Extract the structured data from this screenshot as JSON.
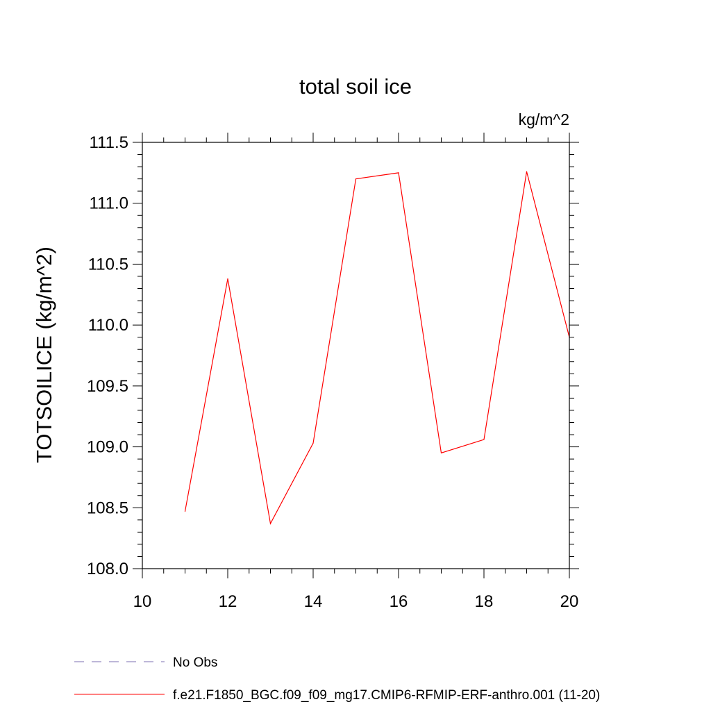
{
  "chart_data": {
    "type": "line",
    "title": "total soil ice",
    "units_label": "kg/m^2",
    "xlabel": "",
    "ylabel": "TOTSOILICE  (kg/m^2)",
    "xlim": [
      10,
      20
    ],
    "ylim": [
      108.0,
      111.5
    ],
    "x_ticks": [
      10,
      12,
      14,
      16,
      18,
      20
    ],
    "x_tick_labels": [
      "10",
      "12",
      "14",
      "16",
      "18",
      "20"
    ],
    "y_ticks": [
      108.0,
      108.5,
      109.0,
      109.5,
      110.0,
      110.5,
      111.0,
      111.5
    ],
    "y_tick_labels": [
      "108.0",
      "108.5",
      "109.0",
      "109.5",
      "110.0",
      "110.5",
      "111.0",
      "111.5"
    ],
    "grid": false,
    "legend_position": "bottom",
    "series": [
      {
        "name": "f.e21.F1850_BGC.f09_f09_mg17.CMIP6-RFMIP-ERF-anthro.001 (11-20)",
        "color": "#ff0000",
        "style": "solid",
        "x": [
          11,
          12,
          13,
          14,
          15,
          16,
          17,
          18,
          19,
          20
        ],
        "y": [
          108.47,
          110.38,
          108.37,
          109.03,
          111.2,
          111.25,
          108.95,
          109.06,
          111.26,
          109.9
        ]
      }
    ],
    "legend": [
      {
        "label": "No Obs",
        "color": "#7b6fb0",
        "style": "dashed"
      },
      {
        "label": "f.e21.F1850_BGC.f09_f09_mg17.CMIP6-RFMIP-ERF-anthro.001 (11-20)",
        "color": "#ff0000",
        "style": "solid"
      }
    ]
  }
}
